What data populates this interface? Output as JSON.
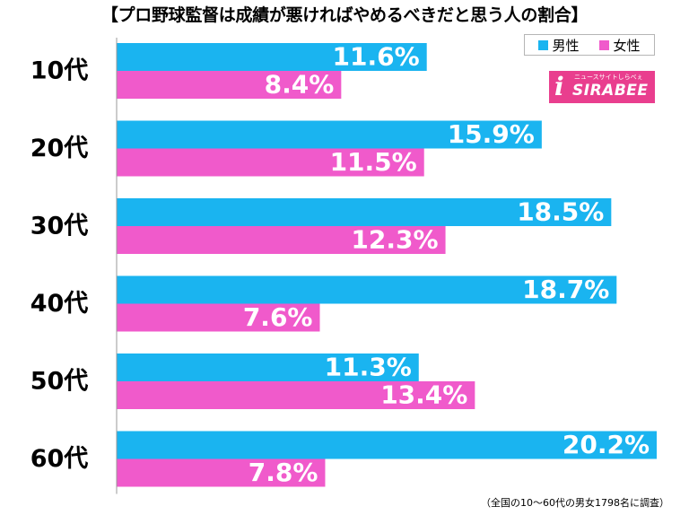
{
  "title": "【プロ野球監督は成績が悪ければやめるべきだと思う人の割合】",
  "legend": {
    "male": "男性",
    "female": "女性"
  },
  "colors": {
    "male": "#1ab4f0",
    "female": "#f05acb"
  },
  "logo": {
    "word": "SIRABEE",
    "tagline": "ニュースサイトしらべぇ",
    "icon": "i-mark-icon"
  },
  "footnote": "（全国の10～60代の男女1798名に調査）",
  "chart_data": {
    "type": "bar",
    "orientation": "horizontal",
    "categories": [
      "10代",
      "20代",
      "30代",
      "40代",
      "50代",
      "60代"
    ],
    "series": [
      {
        "name": "男性",
        "values": [
          11.6,
          15.9,
          18.5,
          18.7,
          11.3,
          20.2
        ]
      },
      {
        "name": "女性",
        "values": [
          8.4,
          11.5,
          12.3,
          7.6,
          13.4,
          7.8
        ]
      }
    ],
    "value_labels": [
      [
        "11.6%",
        "15.9%",
        "18.5%",
        "18.7%",
        "11.3%",
        "20.2%"
      ],
      [
        "8.4%",
        "11.5%",
        "12.3%",
        "7.6%",
        "13.4%",
        "7.8%"
      ]
    ],
    "unit": "%",
    "xlim": [
      0,
      20.2
    ],
    "grid": false,
    "legend_position": "top-right"
  }
}
